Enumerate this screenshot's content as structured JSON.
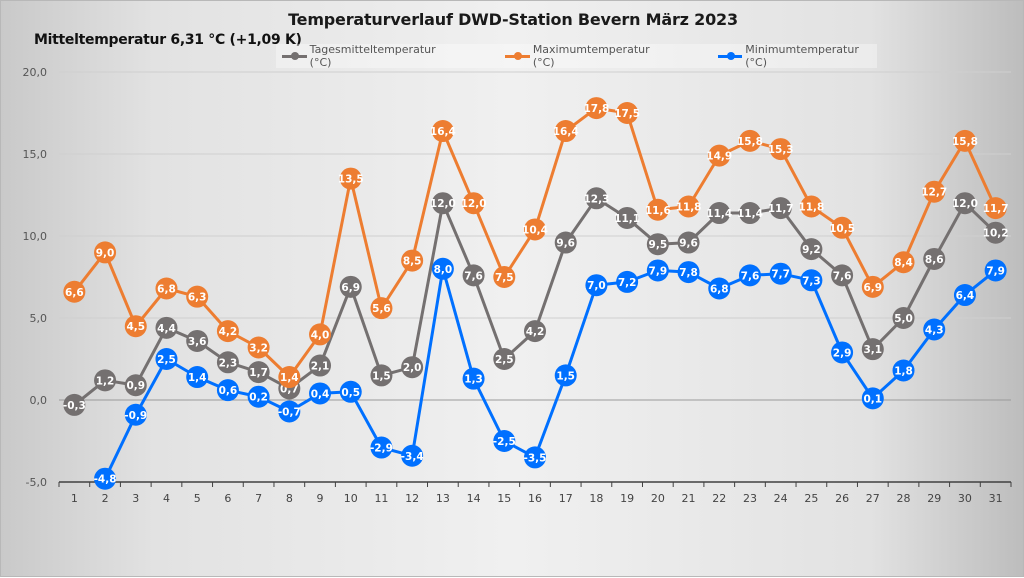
{
  "chart_data": {
    "type": "line",
    "title": "Temperaturverlauf  DWD-Station  Bevern März 2023",
    "subtitle": "Mitteltemperatur 6,31 °C (+1,09 K)",
    "xlabel": "",
    "ylabel": "",
    "x": [
      1,
      2,
      3,
      4,
      5,
      6,
      7,
      8,
      9,
      10,
      11,
      12,
      13,
      14,
      15,
      16,
      17,
      18,
      19,
      20,
      21,
      22,
      23,
      24,
      25,
      26,
      27,
      28,
      29,
      30,
      31
    ],
    "ylim": [
      -5,
      20
    ],
    "yticks": [
      -5,
      0,
      5,
      10,
      15,
      20
    ],
    "ytick_labels": [
      "-5,0",
      "0,0",
      "5,0",
      "10,0",
      "15,0",
      "20,0"
    ],
    "grid": true,
    "legend_position": "top",
    "series": [
      {
        "name": "Tagesmitteltemperatur (°C)",
        "color": "#747070",
        "values": [
          -0.3,
          1.2,
          0.9,
          4.4,
          3.6,
          2.3,
          1.7,
          0.7,
          2.1,
          6.9,
          1.5,
          2.0,
          12.0,
          7.6,
          2.5,
          4.2,
          9.6,
          12.3,
          11.1,
          9.5,
          9.6,
          11.4,
          11.4,
          11.7,
          9.2,
          7.6,
          3.1,
          5.0,
          8.6,
          12.0,
          10.2
        ]
      },
      {
        "name": "Maximumtemperatur (°C)",
        "color": "#ED7D31",
        "values": [
          6.6,
          9.0,
          4.5,
          6.8,
          6.3,
          4.2,
          3.2,
          1.4,
          4.0,
          13.5,
          5.6,
          8.5,
          16.4,
          12.0,
          7.5,
          10.4,
          16.4,
          17.8,
          17.5,
          11.6,
          11.8,
          14.9,
          15.8,
          15.3,
          11.8,
          10.5,
          6.9,
          8.4,
          12.7,
          15.8,
          11.7
        ]
      },
      {
        "name": "Minimumtemperatur (°C)",
        "color": "#0070FF",
        "values": [
          null,
          -4.8,
          -0.9,
          2.5,
          1.4,
          0.6,
          0.2,
          -0.7,
          0.4,
          0.5,
          -2.9,
          -3.4,
          8.0,
          1.3,
          -2.5,
          -3.5,
          1.5,
          7.0,
          7.2,
          7.9,
          7.8,
          6.8,
          7.6,
          7.7,
          7.3,
          2.9,
          0.1,
          1.8,
          4.3,
          6.4,
          7.9
        ]
      }
    ]
  }
}
